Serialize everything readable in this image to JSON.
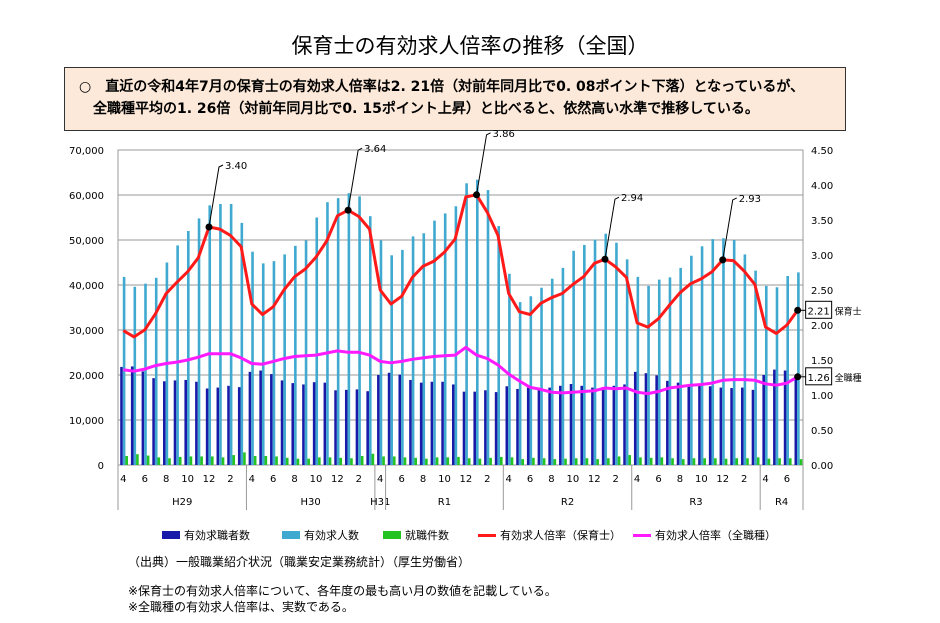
{
  "title": "保育士の有効求人倍率の推移（全国）",
  "summary": [
    "○　直近の令和4年7月の保育士の有効求人倍率は2. 21倍（対前年同月比で0. 08ポイント下落）となっているが、",
    "全職種平均の1. 26倍（対前年同月比で0. 15ポイント上昇）と比べると、依然高い水準で推移している。"
  ],
  "notes": {
    "source": "（出典）一般職業紹介状況（職業安定業務統計）（厚生労働省）",
    "note1": "※保育士の有効求人倍率について、各年度の最も高い月の数値を記載している。",
    "note2": "※全職種の有効求人倍率は、実数である。"
  },
  "chart_data": {
    "type": "bar+line",
    "months": [
      4,
      5,
      6,
      7,
      8,
      9,
      10,
      11,
      12,
      1,
      2,
      3,
      4,
      5,
      6,
      7,
      8,
      9,
      10,
      11,
      12,
      1,
      2,
      3,
      4,
      5,
      6,
      7,
      8,
      9,
      10,
      11,
      12,
      1,
      2,
      3,
      4,
      5,
      6,
      7,
      8,
      9,
      10,
      11,
      12,
      1,
      2,
      3,
      4,
      5,
      6,
      7,
      8,
      9,
      10,
      11,
      12,
      1,
      2,
      3,
      4,
      5,
      6,
      7
    ],
    "periods": [
      {
        "label": "H29",
        "count": 12
      },
      {
        "label": "H30",
        "count": 12
      },
      {
        "label": "H31",
        "count": 1
      },
      {
        "label": "R1",
        "count": 11
      },
      {
        "label": "R2",
        "count": 12
      },
      {
        "label": "R3",
        "count": 12
      },
      {
        "label": "R4",
        "count": 4
      }
    ],
    "left_axis": {
      "range": [
        0,
        70000
      ],
      "ticks": [
        "0",
        "10,000",
        "20,000",
        "30,000",
        "40,000",
        "50,000",
        "60,000",
        "70,000"
      ]
    },
    "right_axis": {
      "range": [
        0,
        4.5
      ],
      "ticks": [
        "0.00",
        "0.50",
        "1.00",
        "1.50",
        "2.00",
        "2.50",
        "3.00",
        "3.50",
        "4.00",
        "4.50"
      ]
    },
    "grid": true,
    "legend_position": "bottom",
    "series": [
      {
        "name": "有効求職者数",
        "kind": "bar",
        "axis": "left",
        "color": "#1a1aa8",
        "values": [
          21800,
          21900,
          20800,
          19300,
          18600,
          18800,
          18900,
          18500,
          17000,
          17200,
          17600,
          17300,
          20700,
          21000,
          20200,
          18800,
          18200,
          17900,
          18400,
          18300,
          16600,
          16700,
          16800,
          16400,
          20000,
          20500,
          20100,
          18900,
          18300,
          18500,
          18500,
          17900,
          16300,
          16300,
          16600,
          16200,
          17500,
          16900,
          17200,
          16900,
          17200,
          17600,
          18000,
          17600,
          17200,
          17300,
          17600,
          17900,
          20700,
          20400,
          19900,
          18700,
          18300,
          17900,
          17800,
          17500,
          17200,
          17100,
          17200,
          16700,
          20000,
          21200,
          21000,
          20000
        ]
      },
      {
        "name": "有効求人数",
        "kind": "bar",
        "axis": "left",
        "color": "#3fa9d0",
        "values": [
          41800,
          39600,
          40300,
          41600,
          45000,
          48800,
          52000,
          54800,
          57700,
          58000,
          58000,
          53800,
          47400,
          44800,
          45300,
          46800,
          48700,
          49900,
          55000,
          58400,
          59300,
          60400,
          59700,
          55300,
          49900,
          46600,
          47800,
          50800,
          51500,
          54300,
          55900,
          57500,
          62600,
          63400,
          61100,
          53100,
          42500,
          36200,
          37500,
          39400,
          41400,
          43800,
          47600,
          48900,
          50100,
          51400,
          49400,
          45700,
          41800,
          39800,
          41200,
          41700,
          43800,
          46500,
          48600,
          50200,
          50400,
          50000,
          46800,
          43200,
          39800,
          39500,
          42000,
          42800
        ]
      },
      {
        "name": "就職件数",
        "kind": "bar",
        "axis": "left",
        "color": "#22c322",
        "values": [
          2000,
          2400,
          2100,
          1700,
          1500,
          1800,
          1900,
          1900,
          1900,
          1700,
          2200,
          2800,
          2000,
          2000,
          1900,
          1600,
          1400,
          1400,
          1700,
          1700,
          1600,
          1500,
          2000,
          2500,
          1900,
          1900,
          1700,
          1600,
          1400,
          1700,
          1700,
          1800,
          1500,
          1400,
          1600,
          1800,
          1700,
          1300,
          1600,
          1500,
          1300,
          1400,
          1500,
          1500,
          1300,
          1500,
          1900,
          2200,
          1700,
          1600,
          1700,
          1500,
          1300,
          1500,
          1500,
          1500,
          1400,
          1500,
          1500,
          1700,
          1400,
          1500,
          1500,
          1300
        ]
      },
      {
        "name": "有効求人倍率（保育士）",
        "kind": "line",
        "axis": "right",
        "color": "#ff1a1a",
        "values": [
          1.92,
          1.83,
          1.93,
          2.16,
          2.45,
          2.61,
          2.76,
          2.96,
          3.4,
          3.37,
          3.28,
          3.12,
          2.3,
          2.15,
          2.26,
          2.5,
          2.69,
          2.8,
          2.97,
          3.2,
          3.56,
          3.64,
          3.55,
          3.37,
          2.5,
          2.3,
          2.41,
          2.68,
          2.84,
          2.91,
          3.04,
          3.23,
          3.83,
          3.86,
          3.61,
          3.28,
          2.45,
          2.19,
          2.15,
          2.31,
          2.39,
          2.45,
          2.58,
          2.69,
          2.88,
          2.94,
          2.83,
          2.68,
          2.03,
          1.97,
          2.09,
          2.28,
          2.46,
          2.59,
          2.66,
          2.76,
          2.93,
          2.92,
          2.77,
          2.58,
          1.97,
          1.88,
          2.0,
          2.21
        ]
      },
      {
        "name": "有効求人倍率（全職種）",
        "kind": "line",
        "axis": "right",
        "color": "#ff1aff",
        "values": [
          1.36,
          1.34,
          1.37,
          1.42,
          1.45,
          1.47,
          1.5,
          1.54,
          1.59,
          1.59,
          1.59,
          1.53,
          1.45,
          1.44,
          1.48,
          1.52,
          1.55,
          1.56,
          1.57,
          1.6,
          1.63,
          1.61,
          1.61,
          1.57,
          1.48,
          1.46,
          1.48,
          1.51,
          1.53,
          1.55,
          1.56,
          1.57,
          1.68,
          1.57,
          1.52,
          1.43,
          1.3,
          1.2,
          1.11,
          1.08,
          1.04,
          1.03,
          1.04,
          1.05,
          1.06,
          1.1,
          1.09,
          1.1,
          1.04,
          1.02,
          1.05,
          1.1,
          1.12,
          1.14,
          1.15,
          1.17,
          1.21,
          1.22,
          1.22,
          1.21,
          1.16,
          1.14,
          1.17,
          1.26
        ]
      }
    ],
    "annotations": [
      {
        "index": 8,
        "text": "3.40"
      },
      {
        "index": 21,
        "text": "3.64"
      },
      {
        "index": 33,
        "text": "3.86"
      },
      {
        "index": 45,
        "text": "2.94"
      },
      {
        "index": 56,
        "text": "2.93"
      }
    ],
    "end_labels": [
      {
        "series": 3,
        "value": "2.21",
        "label": "保育士"
      },
      {
        "series": 4,
        "value": "1.26",
        "label": "全職種"
      }
    ]
  }
}
